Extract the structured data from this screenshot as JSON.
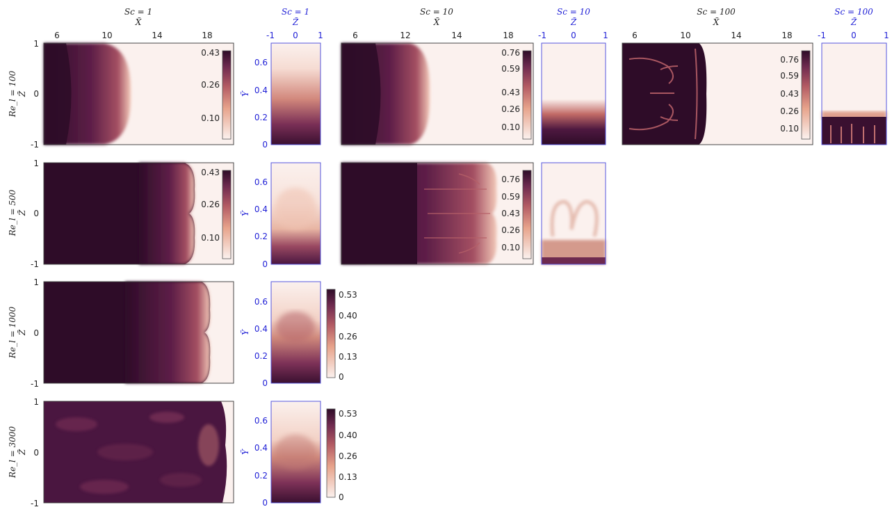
{
  "chart_data": {
    "type": "heatmap",
    "colors": {
      "dark": "#2e0c28",
      "mid": "#8a3a5e",
      "light": "#fbf1ee",
      "side_axis_blue": "#1f1fd6"
    },
    "column_headers": [
      {
        "sc": "Sc = 1",
        "axis": "X̃",
        "style": "black"
      },
      {
        "sc": "Sc = 1",
        "axis": "Z̃",
        "style": "blue"
      },
      {
        "sc": "Sc = 10",
        "axis": "X̃",
        "style": "black"
      },
      {
        "sc": "Sc = 10",
        "axis": "Z̃",
        "style": "blue"
      },
      {
        "sc": "Sc = 100",
        "axis": "X̃",
        "style": "black"
      },
      {
        "sc": "Sc = 100",
        "axis": "Z̃",
        "style": "blue"
      }
    ],
    "row_labels": [
      {
        "re": "Re_l = 100",
        "axis": "Z̃"
      },
      {
        "re": "Re_l = 500",
        "axis": "Z̃"
      },
      {
        "re": "Re_l = 1000",
        "axis": "Z̃"
      },
      {
        "re": "Re_l = 3000",
        "axis": "Z̃"
      }
    ],
    "side_ylabel": "Ỹ",
    "x_ticks_sc1": [
      "6",
      "10",
      "14",
      "18"
    ],
    "x_ticks_sc10": [
      "6",
      "12",
      "14",
      "18"
    ],
    "x_ticks_sc100": [
      "6",
      "10",
      "14",
      "18"
    ],
    "z_ticks_main": [
      "1",
      "0",
      "-1"
    ],
    "z_ticks_side": [
      "-1",
      "0",
      "1"
    ],
    "y_ticks_side": [
      "0.6",
      "0.4",
      "0.2",
      "0"
    ],
    "colorbar_ticks": {
      "sc1_top": [
        "0.43",
        "0.26",
        "0.10"
      ],
      "sc10": [
        "0.76",
        "0.59",
        "0.43",
        "0.26",
        "0.10"
      ],
      "sc1_bottom": [
        "0.53",
        "0.40",
        "0.26",
        "0.13",
        "0"
      ]
    },
    "panels": [
      {
        "row": 0,
        "col": "sc1",
        "front_x": 11.5,
        "fingers": 0,
        "noise": 0.0
      },
      {
        "row": 0,
        "col": "sc10",
        "front_x": 13.2,
        "fingers": 0,
        "noise": 0.0
      },
      {
        "row": 0,
        "col": "sc100",
        "front_x": 11.8,
        "fingers": 6,
        "noise": 0.0
      },
      {
        "row": 1,
        "col": "sc1",
        "front_x": 17.4,
        "fingers": 1,
        "noise": 0.0
      },
      {
        "row": 1,
        "col": "sc10",
        "front_x": 17.8,
        "fingers": 3,
        "noise": 0.1
      },
      {
        "row": 2,
        "col": "sc1",
        "front_x": 18.0,
        "fingers": 1,
        "noise": 0.2
      },
      {
        "row": 3,
        "col": "sc1",
        "front_x": 18.8,
        "fingers": 0,
        "noise": 0.6
      }
    ]
  }
}
